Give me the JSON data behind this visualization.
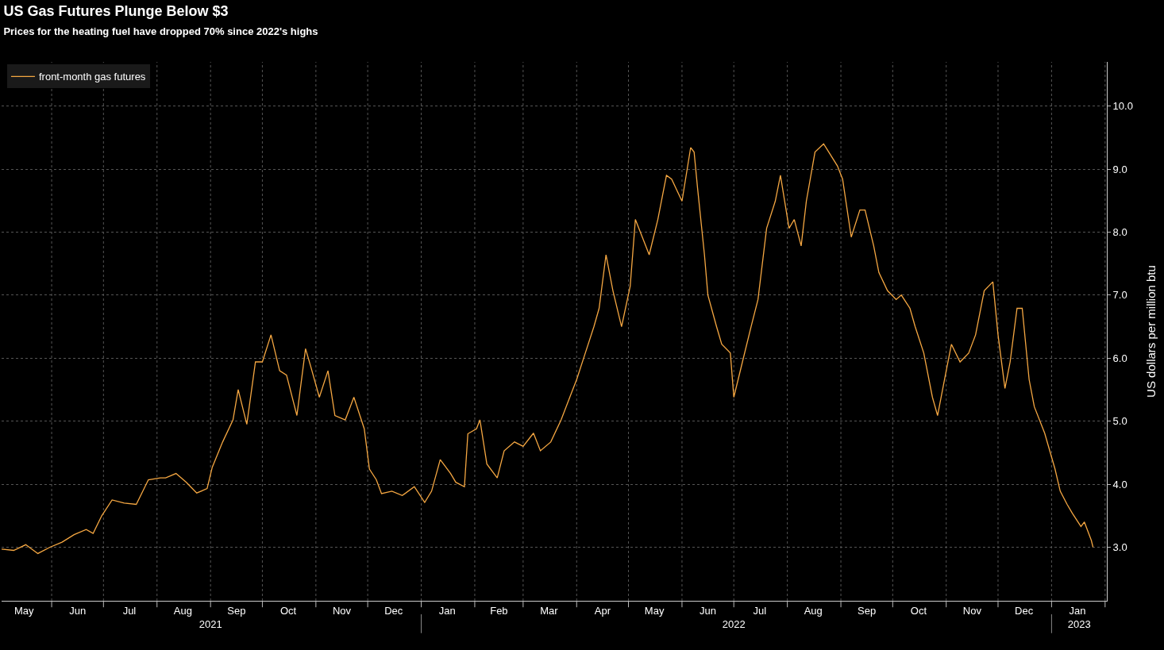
{
  "chart_data": {
    "type": "line",
    "title": "US Gas Futures Plunge Below $3",
    "subtitle": "Prices for the heating fuel have dropped 70% since 2022's highs",
    "ylabel": "US dollars per million btu",
    "x": [
      "2021-05-03",
      "2021-05-10",
      "2021-05-17",
      "2021-05-24",
      "2021-05-31",
      "2021-06-07",
      "2021-06-14",
      "2021-06-21",
      "2021-06-25",
      "2021-06-30",
      "2021-07-06",
      "2021-07-13",
      "2021-07-20",
      "2021-07-27",
      "2021-08-03",
      "2021-08-06",
      "2021-08-12",
      "2021-08-18",
      "2021-08-24",
      "2021-08-30",
      "2021-09-02",
      "2021-09-08",
      "2021-09-14",
      "2021-09-17",
      "2021-09-22",
      "2021-09-27",
      "2021-10-01",
      "2021-10-06",
      "2021-10-11",
      "2021-10-15",
      "2021-10-21",
      "2021-10-26",
      "2021-10-29",
      "2021-11-03",
      "2021-11-08",
      "2021-11-12",
      "2021-11-18",
      "2021-11-23",
      "2021-11-29",
      "2021-12-02",
      "2021-12-06",
      "2021-12-09",
      "2021-12-15",
      "2021-12-21",
      "2021-12-28",
      "2022-01-03",
      "2022-01-07",
      "2022-01-12",
      "2022-01-18",
      "2022-01-21",
      "2022-01-26",
      "2022-01-28",
      "2022-02-02",
      "2022-02-04",
      "2022-02-08",
      "2022-02-14",
      "2022-02-18",
      "2022-02-24",
      "2022-03-01",
      "2022-03-07",
      "2022-03-11",
      "2022-03-17",
      "2022-03-23",
      "2022-03-29",
      "2022-04-01",
      "2022-04-06",
      "2022-04-11",
      "2022-04-14",
      "2022-04-18",
      "2022-04-22",
      "2022-04-27",
      "2022-05-02",
      "2022-05-05",
      "2022-05-10",
      "2022-05-13",
      "2022-05-18",
      "2022-05-23",
      "2022-05-26",
      "2022-06-01",
      "2022-06-06",
      "2022-06-08",
      "2022-06-10",
      "2022-06-14",
      "2022-06-16",
      "2022-06-21",
      "2022-06-24",
      "2022-06-29",
      "2022-07-01",
      "2022-07-06",
      "2022-07-11",
      "2022-07-15",
      "2022-07-20",
      "2022-07-25",
      "2022-07-28",
      "2022-08-02",
      "2022-08-05",
      "2022-08-09",
      "2022-08-12",
      "2022-08-17",
      "2022-08-22",
      "2022-08-25",
      "2022-08-30",
      "2022-09-02",
      "2022-09-07",
      "2022-09-12",
      "2022-09-15",
      "2022-09-20",
      "2022-09-23",
      "2022-09-28",
      "2022-10-03",
      "2022-10-06",
      "2022-10-11",
      "2022-10-14",
      "2022-10-19",
      "2022-10-24",
      "2022-10-27",
      "2022-11-01",
      "2022-11-04",
      "2022-11-09",
      "2022-11-14",
      "2022-11-18",
      "2022-11-23",
      "2022-11-28",
      "2022-12-01",
      "2022-12-05",
      "2022-12-08",
      "2022-12-12",
      "2022-12-15",
      "2022-12-19",
      "2022-12-22",
      "2022-12-28",
      "2023-01-03",
      "2023-01-06",
      "2023-01-10",
      "2023-01-13",
      "2023-01-18",
      "2023-01-20",
      "2023-01-24",
      "2023-01-25"
    ],
    "series": [
      {
        "name": "front-month gas futures",
        "color": "#f5a742",
        "values": [
          2.97,
          2.95,
          3.04,
          2.9,
          3.0,
          3.08,
          3.2,
          3.28,
          3.22,
          3.5,
          3.75,
          3.7,
          3.68,
          4.07,
          4.1,
          4.1,
          4.17,
          4.03,
          3.86,
          3.93,
          4.27,
          4.67,
          5.02,
          5.5,
          4.95,
          5.94,
          5.94,
          6.37,
          5.8,
          5.73,
          5.09,
          6.15,
          5.87,
          5.38,
          5.8,
          5.09,
          5.02,
          5.38,
          4.88,
          4.24,
          4.07,
          3.85,
          3.89,
          3.82,
          3.96,
          3.71,
          3.89,
          4.39,
          4.17,
          4.03,
          3.96,
          4.8,
          4.88,
          5.02,
          4.32,
          4.1,
          4.53,
          4.67,
          4.6,
          4.81,
          4.53,
          4.67,
          5.02,
          5.45,
          5.66,
          6.08,
          6.5,
          6.79,
          7.64,
          7.07,
          6.5,
          7.14,
          8.2,
          7.85,
          7.64,
          8.2,
          8.9,
          8.84,
          8.49,
          9.34,
          9.27,
          8.7,
          7.64,
          7.0,
          6.5,
          6.22,
          6.08,
          5.38,
          5.94,
          6.5,
          6.93,
          8.06,
          8.49,
          8.9,
          8.06,
          8.2,
          7.78,
          8.49,
          9.27,
          9.4,
          9.27,
          9.05,
          8.84,
          7.92,
          8.35,
          8.35,
          7.78,
          7.36,
          7.07,
          6.93,
          7.0,
          6.79,
          6.5,
          6.08,
          5.38,
          5.09,
          5.8,
          6.22,
          5.94,
          6.08,
          6.37,
          7.07,
          7.21,
          6.37,
          5.52,
          5.94,
          6.79,
          6.79,
          5.66,
          5.23,
          4.81,
          4.24,
          3.89,
          3.68,
          3.54,
          3.33,
          3.4,
          3.11,
          3.0
        ]
      }
    ],
    "xlim": [
      "2021-05-03",
      "2023-02-02"
    ],
    "xticks": [
      {
        "value": "2021-05-16",
        "label": "May"
      },
      {
        "value": "2021-06-01",
        "label": null
      },
      {
        "value": "2021-06-16",
        "label": "Jun"
      },
      {
        "value": "2021-07-01",
        "label": null
      },
      {
        "value": "2021-07-16",
        "label": "Jul"
      },
      {
        "value": "2021-08-01",
        "label": null
      },
      {
        "value": "2021-08-16",
        "label": "Aug"
      },
      {
        "value": "2021-09-01",
        "label": null
      },
      {
        "value": "2021-09-16",
        "label": "Sep"
      },
      {
        "value": "2021-10-01",
        "label": null
      },
      {
        "value": "2021-10-16",
        "label": "Oct"
      },
      {
        "value": "2021-11-01",
        "label": null
      },
      {
        "value": "2021-11-16",
        "label": "Nov"
      },
      {
        "value": "2021-12-01",
        "label": null
      },
      {
        "value": "2021-12-16",
        "label": "Dec"
      },
      {
        "value": "2022-01-01",
        "label": null
      },
      {
        "value": "2022-01-16",
        "label": "Jan"
      },
      {
        "value": "2022-02-01",
        "label": null
      },
      {
        "value": "2022-02-15",
        "label": "Feb"
      },
      {
        "value": "2022-03-01",
        "label": null
      },
      {
        "value": "2022-03-16",
        "label": "Mar"
      },
      {
        "value": "2022-04-01",
        "label": null
      },
      {
        "value": "2022-04-16",
        "label": "Apr"
      },
      {
        "value": "2022-05-01",
        "label": null
      },
      {
        "value": "2022-05-16",
        "label": "May"
      },
      {
        "value": "2022-06-01",
        "label": null
      },
      {
        "value": "2022-06-16",
        "label": "Jun"
      },
      {
        "value": "2022-07-01",
        "label": null
      },
      {
        "value": "2022-07-16",
        "label": "Jul"
      },
      {
        "value": "2022-08-01",
        "label": null
      },
      {
        "value": "2022-08-16",
        "label": "Aug"
      },
      {
        "value": "2022-09-01",
        "label": null
      },
      {
        "value": "2022-09-16",
        "label": "Sep"
      },
      {
        "value": "2022-10-01",
        "label": null
      },
      {
        "value": "2022-10-16",
        "label": "Oct"
      },
      {
        "value": "2022-11-01",
        "label": null
      },
      {
        "value": "2022-11-16",
        "label": "Nov"
      },
      {
        "value": "2022-12-01",
        "label": null
      },
      {
        "value": "2022-12-16",
        "label": "Dec"
      },
      {
        "value": "2023-01-01",
        "label": null
      },
      {
        "value": "2023-01-16",
        "label": "Jan"
      },
      {
        "value": "2023-02-01",
        "label": null
      }
    ],
    "x2lim": [
      "2021-05-03",
      "2023-02-02"
    ],
    "x2ticks": [
      {
        "value": "2021-09-01",
        "label": "2021"
      },
      {
        "value": "2022-01-01",
        "label": null
      },
      {
        "value": "2022-07-01",
        "label": "2022"
      },
      {
        "value": "2023-01-01",
        "label": null
      },
      {
        "value": "2023-01-17",
        "label": "2023"
      }
    ],
    "ylim": [
      2.15,
      10.7
    ],
    "yticks": [
      {
        "value": 3,
        "label": "3.0"
      },
      {
        "value": 4,
        "label": "4.0"
      },
      {
        "value": 5,
        "label": "5.0"
      },
      {
        "value": 6,
        "label": "6.0"
      },
      {
        "value": 7,
        "label": "7.0"
      },
      {
        "value": 8,
        "label": "8.0"
      },
      {
        "value": 9,
        "label": "9.0"
      },
      {
        "value": 10,
        "label": "10.0"
      }
    ],
    "grid": true,
    "legend": "top left"
  }
}
